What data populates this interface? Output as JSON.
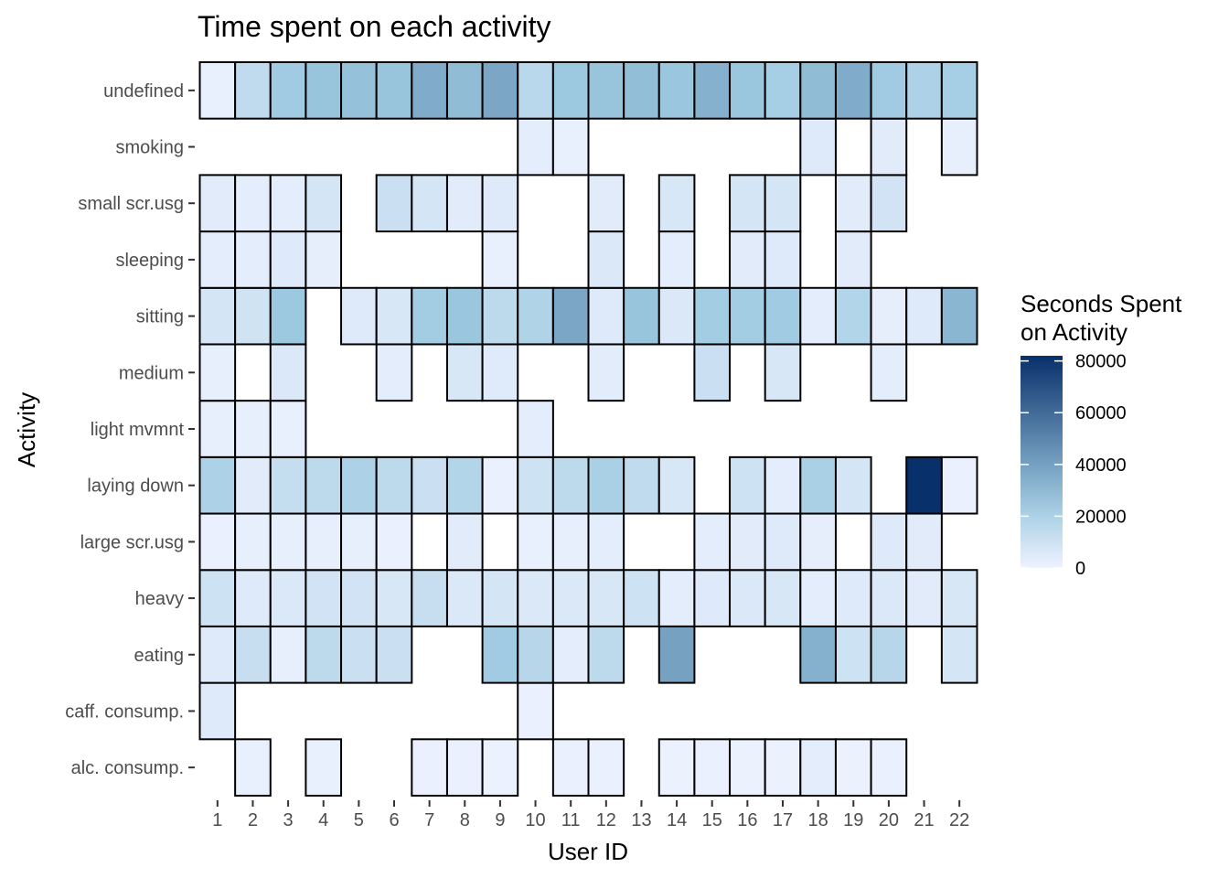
{
  "chart_data": {
    "type": "heatmap",
    "title": "Time spent on each activity",
    "xlabel": "User ID",
    "ylabel": "Activity",
    "x_categories": [
      "1",
      "2",
      "3",
      "4",
      "5",
      "6",
      "7",
      "8",
      "9",
      "10",
      "11",
      "12",
      "13",
      "14",
      "15",
      "16",
      "17",
      "18",
      "19",
      "20",
      "21",
      "22"
    ],
    "y_categories": [
      "alc. consump.",
      "caff. consump.",
      "eating",
      "heavy",
      "large scr.usg",
      "laying down",
      "light mvmnt",
      "medium",
      "sitting",
      "sleeping",
      "small scr.usg",
      "smoking",
      "undefined"
    ],
    "grid": false,
    "legend": {
      "title_lines": [
        "Seconds Spent",
        "on Activity"
      ],
      "position": "right",
      "ticks": [
        0,
        20000,
        40000,
        60000,
        80000
      ],
      "range": [
        0,
        82000
      ],
      "colors": {
        "low": "#eef2ff",
        "mid": "#9ecae1",
        "high": "#08306b"
      }
    },
    "cells": {
      "undefined": [
        1500,
        14000,
        24000,
        27000,
        28000,
        27000,
        36000,
        30000,
        38000,
        16000,
        25000,
        27000,
        29000,
        26000,
        34000,
        26000,
        22000,
        30000,
        36000,
        24000,
        20000,
        22000
      ],
      "smoking": [
        null,
        null,
        null,
        null,
        null,
        null,
        null,
        null,
        null,
        3000,
        1500,
        null,
        null,
        null,
        null,
        null,
        null,
        5000,
        null,
        4000,
        null,
        2000
      ],
      "small scr.usg": [
        4000,
        3000,
        3000,
        8000,
        null,
        11000,
        8000,
        4000,
        5000,
        null,
        null,
        4000,
        null,
        7000,
        null,
        8000,
        8000,
        null,
        4000,
        9000,
        null,
        null
      ],
      "sleeping": [
        3000,
        3000,
        5000,
        2500,
        null,
        null,
        null,
        null,
        1500,
        null,
        null,
        6000,
        null,
        3000,
        null,
        4000,
        5000,
        null,
        4000,
        null,
        null,
        null
      ],
      "sitting": [
        8000,
        9500,
        25000,
        null,
        5000,
        7000,
        23000,
        26000,
        15000,
        19000,
        38000,
        5000,
        27000,
        6000,
        23000,
        23000,
        24000,
        3000,
        18000,
        2500,
        5000,
        32000
      ],
      "medium": [
        2000,
        null,
        6000,
        null,
        null,
        3000,
        null,
        7000,
        4500,
        null,
        null,
        3500,
        null,
        null,
        11000,
        null,
        7000,
        null,
        null,
        3000,
        null,
        null
      ],
      "light mvmnt": [
        2000,
        2000,
        1500,
        null,
        null,
        null,
        null,
        null,
        null,
        3000,
        null,
        null,
        null,
        null,
        null,
        null,
        null,
        null,
        null,
        null,
        null,
        null
      ],
      "laying down": [
        20000,
        4000,
        13000,
        15000,
        20000,
        15000,
        11000,
        18000,
        1000,
        10000,
        15000,
        21000,
        14000,
        7000,
        null,
        10000,
        3000,
        21000,
        8000,
        null,
        82000,
        1000
      ],
      "large scr.usg": [
        1000,
        2000,
        2000,
        2000,
        2000,
        1000,
        null,
        4000,
        null,
        1500,
        2000,
        3000,
        null,
        null,
        3000,
        4000,
        5000,
        2500,
        null,
        5000,
        4000,
        null
      ],
      "heavy": [
        10000,
        5000,
        6000,
        9000,
        9000,
        7000,
        12000,
        6000,
        8000,
        6000,
        6000,
        7000,
        10000,
        3000,
        5000,
        6000,
        7000,
        3000,
        5000,
        6000,
        4000,
        7000
      ],
      "eating": [
        5000,
        12000,
        2000,
        15000,
        11000,
        11000,
        null,
        null,
        24000,
        17000,
        3000,
        15000,
        null,
        40000,
        null,
        null,
        null,
        34000,
        10000,
        17000,
        null,
        8000
      ],
      "caff. consump.": [
        5000,
        null,
        null,
        null,
        null,
        null,
        null,
        null,
        null,
        1000,
        null,
        null,
        null,
        null,
        null,
        null,
        null,
        null,
        null,
        null,
        null,
        null
      ],
      "alc. consump.": [
        null,
        1500,
        null,
        1500,
        null,
        null,
        1000,
        1000,
        500,
        null,
        1000,
        1000,
        null,
        500,
        1000,
        500,
        500,
        3000,
        500,
        1000,
        null,
        null
      ]
    }
  }
}
